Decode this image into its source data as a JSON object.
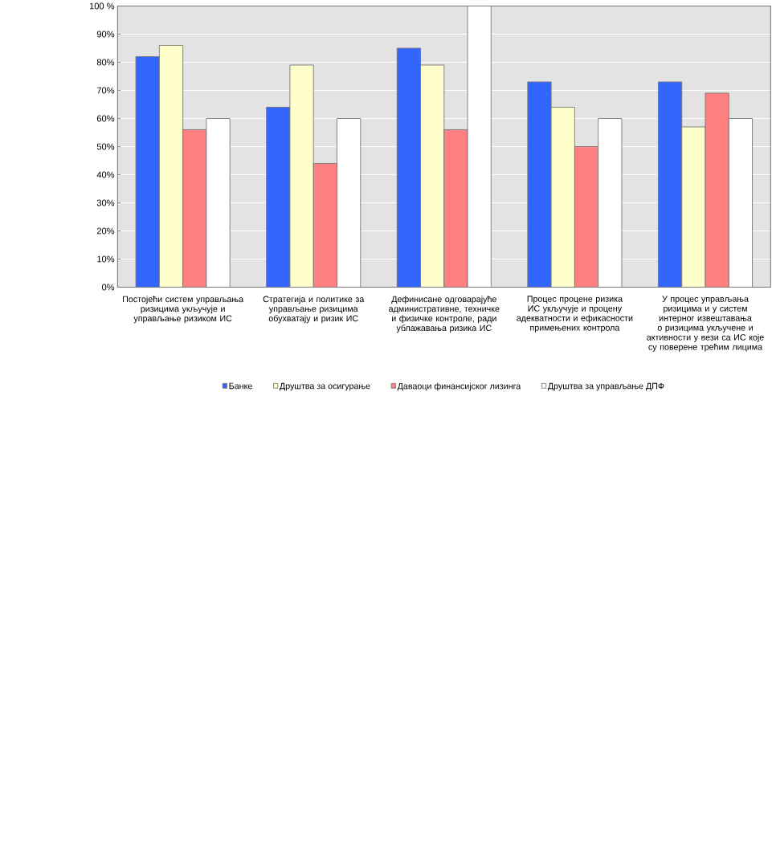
{
  "chart_data": {
    "type": "bar",
    "categories": [
      "Постојећи систем управљања ризицима укључује и управљање ризиком ИС",
      "Стратегија и политике за управљање ризицима обухватају и ризик ИС",
      "Дефинисане одговарајуће административне, техничке и физичке контроле, ради ублажавања ризика ИС",
      "Процес процене ризика ИС укључује и процену адекватности и ефикасности примењених контрола",
      "У процес управљања ризицима и у систем интерног извештавања о ризицима укључене и активности у вези са ИС које су поверене трећим лицима"
    ],
    "series": [
      {
        "name": "Банке",
        "color": "#3366ff",
        "values": [
          82,
          64,
          85,
          73,
          73
        ]
      },
      {
        "name": "Друштва за осигурање",
        "color": "#ffffcc",
        "values": [
          86,
          79,
          79,
          64,
          57
        ]
      },
      {
        "name": "Даваоци финансијског лизинга",
        "color": "#ff8080",
        "values": [
          56,
          44,
          56,
          50,
          69
        ]
      },
      {
        "name": "Друштва за управљање ДПФ",
        "color": "#ffffff",
        "values": [
          60,
          60,
          100,
          60,
          60
        ]
      }
    ],
    "ylim": [
      0,
      100
    ],
    "yticks": [
      {
        "value": 0,
        "label": "0%"
      },
      {
        "value": 10,
        "label": "10%"
      },
      {
        "value": 20,
        "label": "20%"
      },
      {
        "value": 30,
        "label": "30%"
      },
      {
        "value": 40,
        "label": "40%"
      },
      {
        "value": 50,
        "label": "50%"
      },
      {
        "value": 60,
        "label": "60%"
      },
      {
        "value": 70,
        "label": "70%"
      },
      {
        "value": 80,
        "label": "80%"
      },
      {
        "value": 90,
        "label": "90%"
      },
      {
        "value": 100,
        "label": "100 %"
      }
    ],
    "grid": "y",
    "legend": "bottom"
  }
}
